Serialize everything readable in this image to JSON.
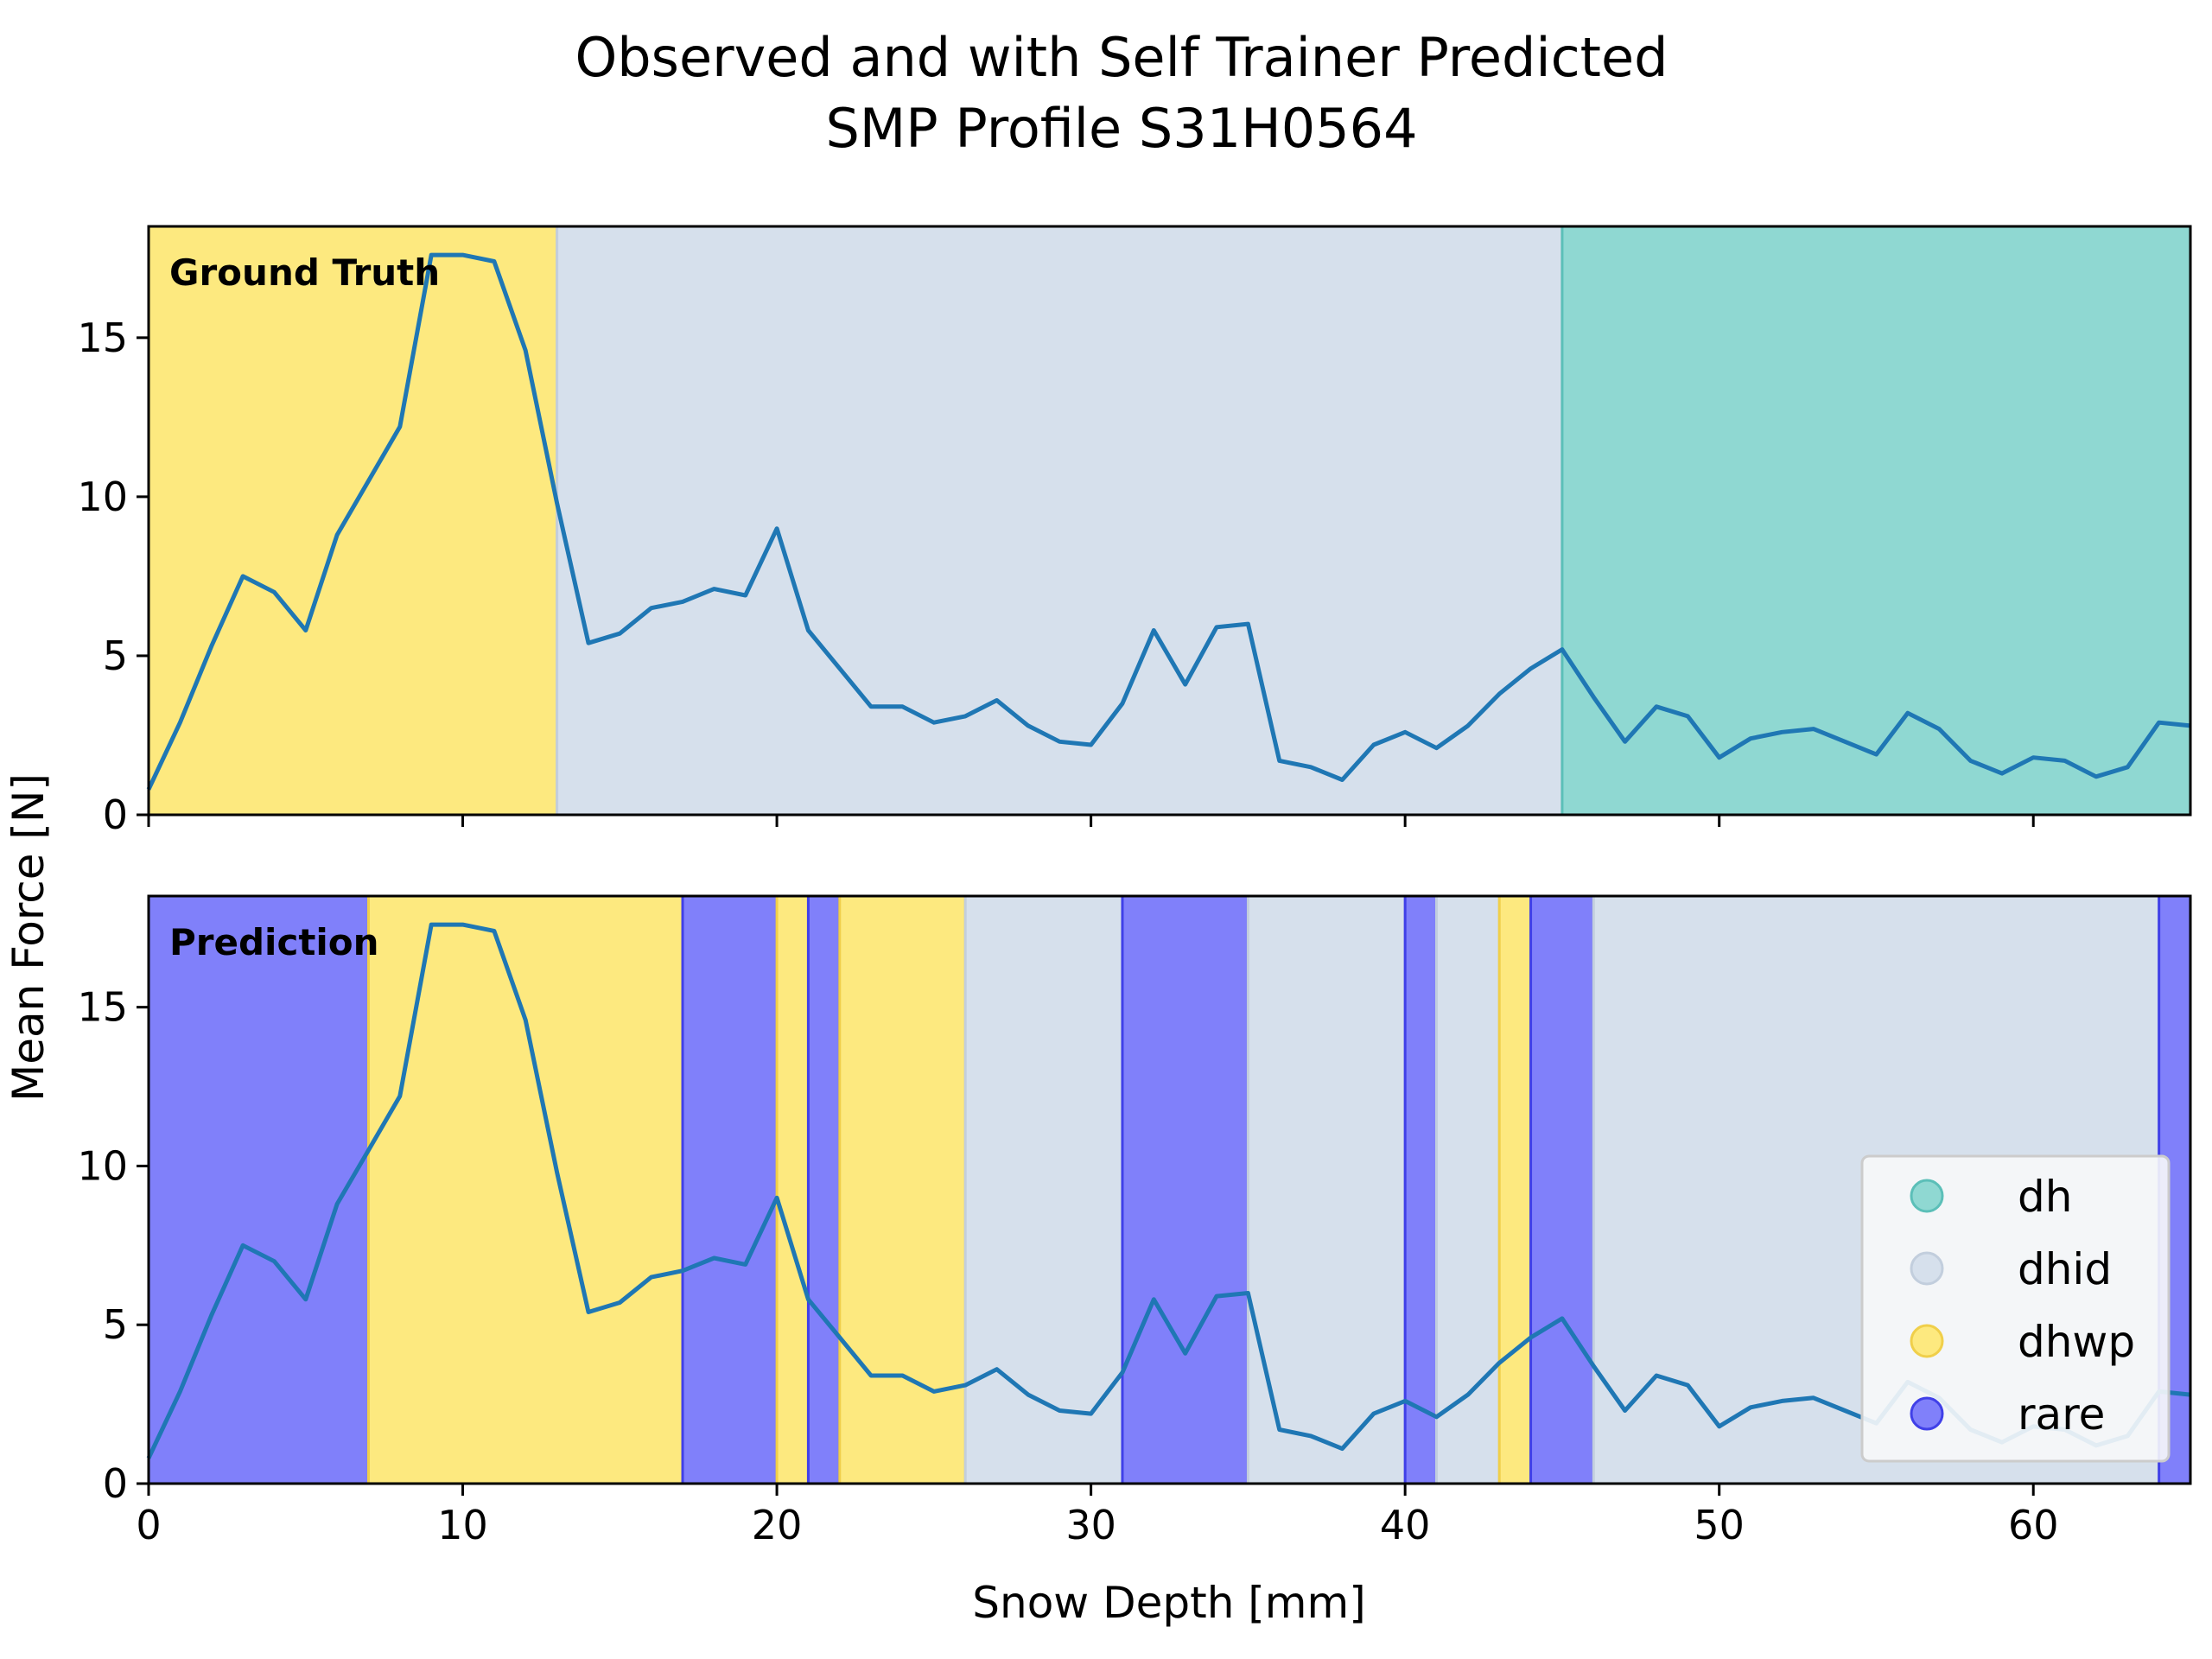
{
  "chart_data": {
    "type": "line",
    "title_line1": "Observed and with Self Trainer Predicted",
    "title_line2": "SMP Profile S31H0564",
    "xlabel": "Snow Depth [mm]",
    "ylabel": "Mean Force [N]",
    "xlim": [
      0,
      65
    ],
    "ylim": [
      0,
      18.5
    ],
    "xticks": [
      0,
      10,
      20,
      30,
      40,
      50,
      60
    ],
    "yticks": [
      0,
      5,
      10,
      15
    ],
    "grid": false,
    "legend_position": "lower right",
    "classes": [
      {
        "name": "dh",
        "color": "#8fd8d2",
        "edge": "#5bbfb8"
      },
      {
        "name": "dhid",
        "color": "#d6e0ec",
        "edge": "#c2cedd"
      },
      {
        "name": "dhwp",
        "color": "#fde97f",
        "edge": "#f0cf4a"
      },
      {
        "name": "rare",
        "color": "#8080fa",
        "edge": "#4040e8"
      }
    ],
    "line_color": "#1f77b4",
    "x": [
      0,
      1,
      2,
      3,
      4,
      5,
      6,
      7,
      8,
      9,
      10,
      11,
      12,
      13,
      14,
      15,
      16,
      17,
      18,
      19,
      20,
      21,
      22,
      23,
      24,
      25,
      26,
      27,
      28,
      29,
      30,
      31,
      32,
      33,
      34,
      35,
      36,
      37,
      38,
      39,
      40,
      41,
      42,
      43,
      44,
      45,
      46,
      47,
      48,
      49,
      50,
      51,
      52,
      53,
      54,
      55,
      56,
      57,
      58,
      59,
      60,
      61,
      62,
      63,
      64,
      65
    ],
    "y": [
      0.8,
      2.9,
      5.3,
      7.5,
      7.0,
      5.8,
      8.8,
      10.5,
      12.2,
      17.6,
      17.6,
      17.4,
      14.6,
      9.8,
      5.4,
      5.7,
      6.5,
      6.7,
      7.1,
      6.9,
      9.0,
      5.8,
      4.6,
      3.4,
      3.4,
      2.9,
      3.1,
      3.6,
      2.8,
      2.3,
      2.2,
      3.5,
      5.8,
      4.1,
      5.9,
      6.0,
      1.7,
      1.5,
      1.1,
      2.2,
      2.6,
      2.1,
      2.8,
      3.8,
      4.6,
      5.2,
      3.7,
      2.3,
      3.4,
      3.1,
      1.8,
      2.4,
      2.6,
      2.7,
      2.3,
      1.9,
      3.2,
      2.7,
      1.7,
      1.3,
      1.8,
      1.7,
      1.2,
      1.5,
      2.9,
      2.8
    ],
    "panels": [
      {
        "label": "Ground Truth",
        "segments": [
          {
            "from": 0,
            "to": 13,
            "cls": "dhwp"
          },
          {
            "from": 13,
            "to": 45,
            "cls": "dhid"
          },
          {
            "from": 45,
            "to": 65,
            "cls": "dh"
          }
        ]
      },
      {
        "label": "Prediction",
        "segments": [
          {
            "from": 0,
            "to": 7,
            "cls": "rare"
          },
          {
            "from": 7,
            "to": 17,
            "cls": "dhwp"
          },
          {
            "from": 17,
            "to": 20,
            "cls": "rare"
          },
          {
            "from": 20,
            "to": 21,
            "cls": "dhwp"
          },
          {
            "from": 21,
            "to": 22,
            "cls": "rare"
          },
          {
            "from": 22,
            "to": 26,
            "cls": "dhwp"
          },
          {
            "from": 26,
            "to": 31,
            "cls": "dhid"
          },
          {
            "from": 31,
            "to": 35,
            "cls": "rare"
          },
          {
            "from": 35,
            "to": 40,
            "cls": "dhid"
          },
          {
            "from": 40,
            "to": 41,
            "cls": "rare"
          },
          {
            "from": 41,
            "to": 43,
            "cls": "dhid"
          },
          {
            "from": 43,
            "to": 44,
            "cls": "dhwp"
          },
          {
            "from": 44,
            "to": 46,
            "cls": "rare"
          },
          {
            "from": 46,
            "to": 64,
            "cls": "dhid"
          },
          {
            "from": 64,
            "to": 65,
            "cls": "rare"
          }
        ]
      }
    ]
  }
}
